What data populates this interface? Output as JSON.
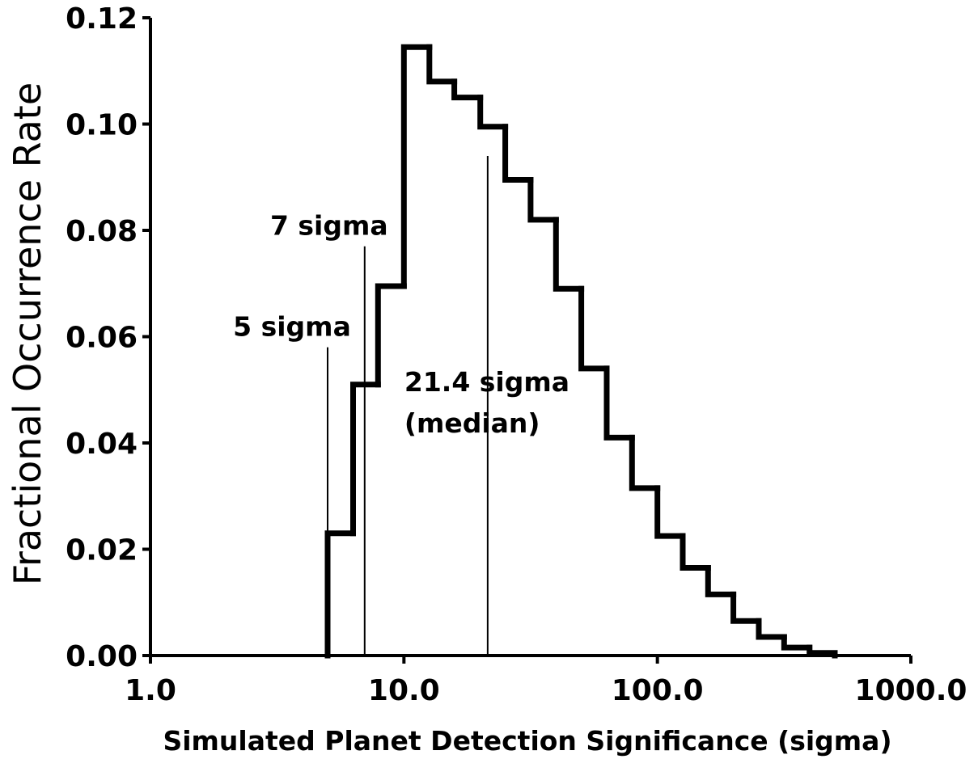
{
  "chart_data": {
    "type": "bar",
    "style": "step-histogram",
    "xscale": "log",
    "xlim": [
      1.0,
      1000.0
    ],
    "ylim": [
      0.0,
      0.12
    ],
    "xlabel": "Simulated Planet Detection Significance (sigma)",
    "ylabel": "Fractional Occurrence Rate",
    "xticks": [
      "1.0",
      "10.0",
      "100.0",
      "1000.0"
    ],
    "yticks": [
      "0.00",
      "0.02",
      "0.04",
      "0.06",
      "0.08",
      "0.10",
      "0.12"
    ],
    "bin_edges": [
      5.0,
      6.3,
      7.9,
      10.0,
      12.6,
      15.8,
      20.0,
      25.1,
      31.6,
      39.8,
      50.1,
      63.1,
      79.4,
      100.0,
      125.9,
      158.5,
      199.5,
      251.2,
      316.2,
      398.1,
      501.2
    ],
    "values": [
      0.023,
      0.051,
      0.0695,
      0.1145,
      0.108,
      0.105,
      0.0995,
      0.0895,
      0.082,
      0.069,
      0.054,
      0.041,
      0.0315,
      0.0225,
      0.0165,
      0.0115,
      0.0065,
      0.0035,
      0.0015,
      0.0005
    ],
    "annotations": [
      {
        "x": 5.0,
        "y_top": 0.058,
        "label_lines": [
          "5 sigma"
        ]
      },
      {
        "x": 7.0,
        "y_top": 0.077,
        "label_lines": [
          "7 sigma"
        ]
      },
      {
        "x": 21.4,
        "y_top": 0.094,
        "label_lines": [
          "21.4 sigma",
          "(median)"
        ]
      }
    ],
    "grid": false,
    "legend": "none"
  }
}
